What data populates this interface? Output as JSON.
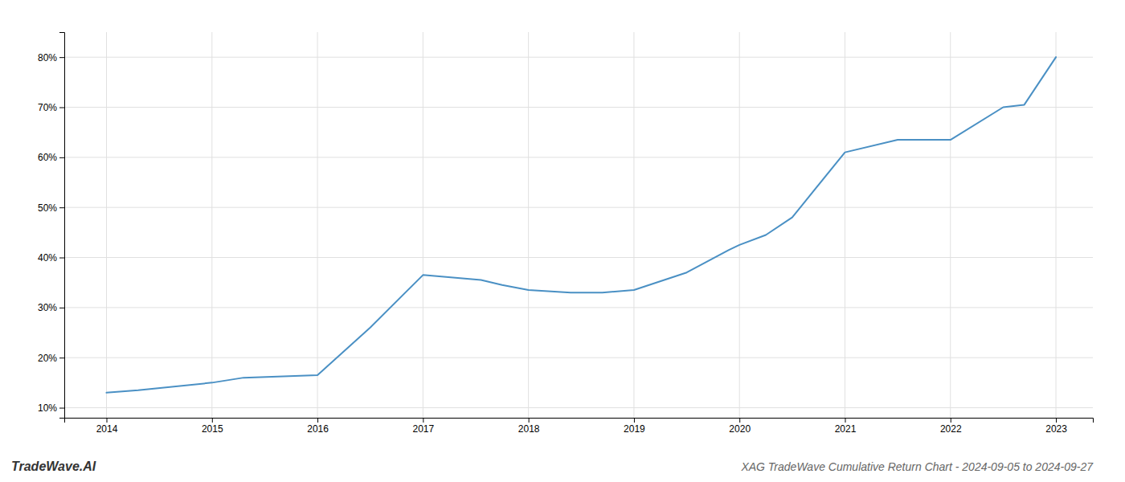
{
  "chart_data": {
    "type": "line",
    "title": "XAG TradeWave Cumulative Return Chart - 2024-09-05 to 2024-09-27",
    "annotations": [
      "TradeWave.AI"
    ],
    "x": [
      2014.0,
      2014.3,
      2015.0,
      2015.3,
      2016.0,
      2016.5,
      2017.0,
      2017.55,
      2017.75,
      2018.0,
      2018.4,
      2018.7,
      2019.0,
      2019.5,
      2019.9,
      2020.0,
      2020.25,
      2020.5,
      2021.0,
      2021.5,
      2022.0,
      2022.5,
      2022.7,
      2023.0
    ],
    "values": [
      13.0,
      13.5,
      15.0,
      16.0,
      16.5,
      26.0,
      36.5,
      35.5,
      34.5,
      33.5,
      33.0,
      33.0,
      33.5,
      37.0,
      41.5,
      42.5,
      44.5,
      48.0,
      61.0,
      63.5,
      63.5,
      70.0,
      70.5,
      80.0
    ],
    "color": "#4a90c4",
    "xlim": [
      2013.6,
      2023.35
    ],
    "ylim": [
      8,
      85
    ],
    "xticks": [
      2014,
      2015,
      2016,
      2017,
      2018,
      2019,
      2020,
      2021,
      2022,
      2023
    ],
    "yticks": [
      {
        "value": 10,
        "label": "10%"
      },
      {
        "value": 20,
        "label": "20%"
      },
      {
        "value": 30,
        "label": "30%"
      },
      {
        "value": 40,
        "label": "40%"
      },
      {
        "value": 50,
        "label": "50%"
      },
      {
        "value": 60,
        "label": "60%"
      },
      {
        "value": 70,
        "label": "70%"
      },
      {
        "value": 80,
        "label": "80%"
      }
    ],
    "grid": true
  }
}
